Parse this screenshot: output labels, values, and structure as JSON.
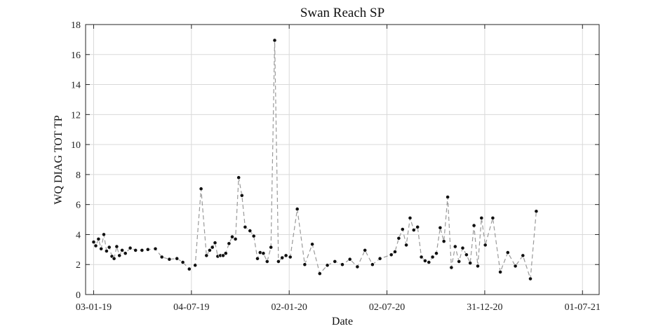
{
  "chart_data": {
    "type": "line",
    "title": "Swan Reach SP",
    "xlabel": "Date",
    "ylabel": "WQ DIAG TOT TP",
    "xlim": [
      "2018-12-19",
      "2021-08-01"
    ],
    "ylim": [
      0,
      18
    ],
    "yticks": [
      0,
      2,
      4,
      6,
      8,
      10,
      12,
      14,
      16,
      18
    ],
    "xticks": [
      {
        "date": "2019-01-03",
        "label": "03-01-19"
      },
      {
        "date": "2019-07-04",
        "label": "04-07-19"
      },
      {
        "date": "2020-01-02",
        "label": "02-01-20"
      },
      {
        "date": "2020-07-02",
        "label": "02-07-20"
      },
      {
        "date": "2020-12-31",
        "label": "31-12-20"
      },
      {
        "date": "2021-07-01",
        "label": "01-07-21"
      }
    ],
    "grid": true,
    "series": [
      {
        "line_color": "#9a9a9a",
        "marker_color": "#111111",
        "points": [
          [
            "2019-01-03",
            3.5
          ],
          [
            "2019-01-07",
            3.25
          ],
          [
            "2019-01-12",
            3.7
          ],
          [
            "2019-01-17",
            3.05
          ],
          [
            "2019-01-22",
            4.0
          ],
          [
            "2019-01-27",
            2.9
          ],
          [
            "2019-02-01",
            3.15
          ],
          [
            "2019-02-06",
            2.55
          ],
          [
            "2019-02-10",
            2.4
          ],
          [
            "2019-02-15",
            3.2
          ],
          [
            "2019-02-20",
            2.6
          ],
          [
            "2019-02-25",
            2.95
          ],
          [
            "2019-03-03",
            2.75
          ],
          [
            "2019-03-12",
            3.1
          ],
          [
            "2019-03-22",
            2.95
          ],
          [
            "2019-04-03",
            2.95
          ],
          [
            "2019-04-14",
            3.0
          ],
          [
            "2019-04-28",
            3.05
          ],
          [
            "2019-05-10",
            2.5
          ],
          [
            "2019-05-24",
            2.35
          ],
          [
            "2019-06-07",
            2.4
          ],
          [
            "2019-06-18",
            2.15
          ],
          [
            "2019-06-30",
            1.7
          ],
          [
            "2019-07-11",
            1.95
          ],
          [
            "2019-07-22",
            7.05
          ],
          [
            "2019-08-01",
            2.6
          ],
          [
            "2019-08-07",
            2.95
          ],
          [
            "2019-08-12",
            3.15
          ],
          [
            "2019-08-17",
            3.45
          ],
          [
            "2019-08-22",
            2.55
          ],
          [
            "2019-08-27",
            2.6
          ],
          [
            "2019-09-01",
            2.6
          ],
          [
            "2019-09-06",
            2.75
          ],
          [
            "2019-09-12",
            3.4
          ],
          [
            "2019-09-18",
            3.85
          ],
          [
            "2019-09-24",
            3.7
          ],
          [
            "2019-09-30",
            7.8
          ],
          [
            "2019-10-06",
            6.6
          ],
          [
            "2019-10-12",
            4.5
          ],
          [
            "2019-10-21",
            4.25
          ],
          [
            "2019-10-28",
            3.9
          ],
          [
            "2019-11-04",
            2.4
          ],
          [
            "2019-11-09",
            2.8
          ],
          [
            "2019-11-15",
            2.75
          ],
          [
            "2019-11-22",
            2.2
          ],
          [
            "2019-11-29",
            3.15
          ],
          [
            "2019-12-06",
            16.95
          ],
          [
            "2019-12-13",
            2.2
          ],
          [
            "2019-12-20",
            2.45
          ],
          [
            "2019-12-27",
            2.6
          ],
          [
            "2020-01-04",
            2.5
          ],
          [
            "2020-01-17",
            5.7
          ],
          [
            "2020-01-31",
            2.0
          ],
          [
            "2020-02-14",
            3.35
          ],
          [
            "2020-02-28",
            1.4
          ],
          [
            "2020-03-13",
            1.95
          ],
          [
            "2020-03-27",
            2.2
          ],
          [
            "2020-04-10",
            2.0
          ],
          [
            "2020-04-24",
            2.35
          ],
          [
            "2020-05-08",
            1.85
          ],
          [
            "2020-05-22",
            2.95
          ],
          [
            "2020-06-05",
            2.0
          ],
          [
            "2020-06-19",
            2.4
          ],
          [
            "2020-07-10",
            2.65
          ],
          [
            "2020-07-17",
            2.85
          ],
          [
            "2020-07-24",
            3.75
          ],
          [
            "2020-07-31",
            4.35
          ],
          [
            "2020-08-07",
            3.3
          ],
          [
            "2020-08-14",
            5.1
          ],
          [
            "2020-08-21",
            4.3
          ],
          [
            "2020-08-28",
            4.5
          ],
          [
            "2020-09-04",
            2.5
          ],
          [
            "2020-09-11",
            2.25
          ],
          [
            "2020-09-18",
            2.15
          ],
          [
            "2020-09-25",
            2.5
          ],
          [
            "2020-10-02",
            2.75
          ],
          [
            "2020-10-09",
            4.45
          ],
          [
            "2020-10-16",
            3.55
          ],
          [
            "2020-10-23",
            6.5
          ],
          [
            "2020-10-30",
            1.8
          ],
          [
            "2020-11-06",
            3.2
          ],
          [
            "2020-11-13",
            2.2
          ],
          [
            "2020-11-20",
            3.1
          ],
          [
            "2020-11-27",
            2.65
          ],
          [
            "2020-12-04",
            2.1
          ],
          [
            "2020-12-11",
            4.6
          ],
          [
            "2020-12-18",
            1.9
          ],
          [
            "2020-12-25",
            5.1
          ],
          [
            "2021-01-01",
            3.3
          ],
          [
            "2021-01-15",
            5.1
          ],
          [
            "2021-01-29",
            1.5
          ],
          [
            "2021-02-12",
            2.8
          ],
          [
            "2021-02-26",
            1.9
          ],
          [
            "2021-03-12",
            2.6
          ],
          [
            "2021-03-26",
            1.05
          ],
          [
            "2021-04-06",
            5.55
          ]
        ]
      }
    ]
  }
}
